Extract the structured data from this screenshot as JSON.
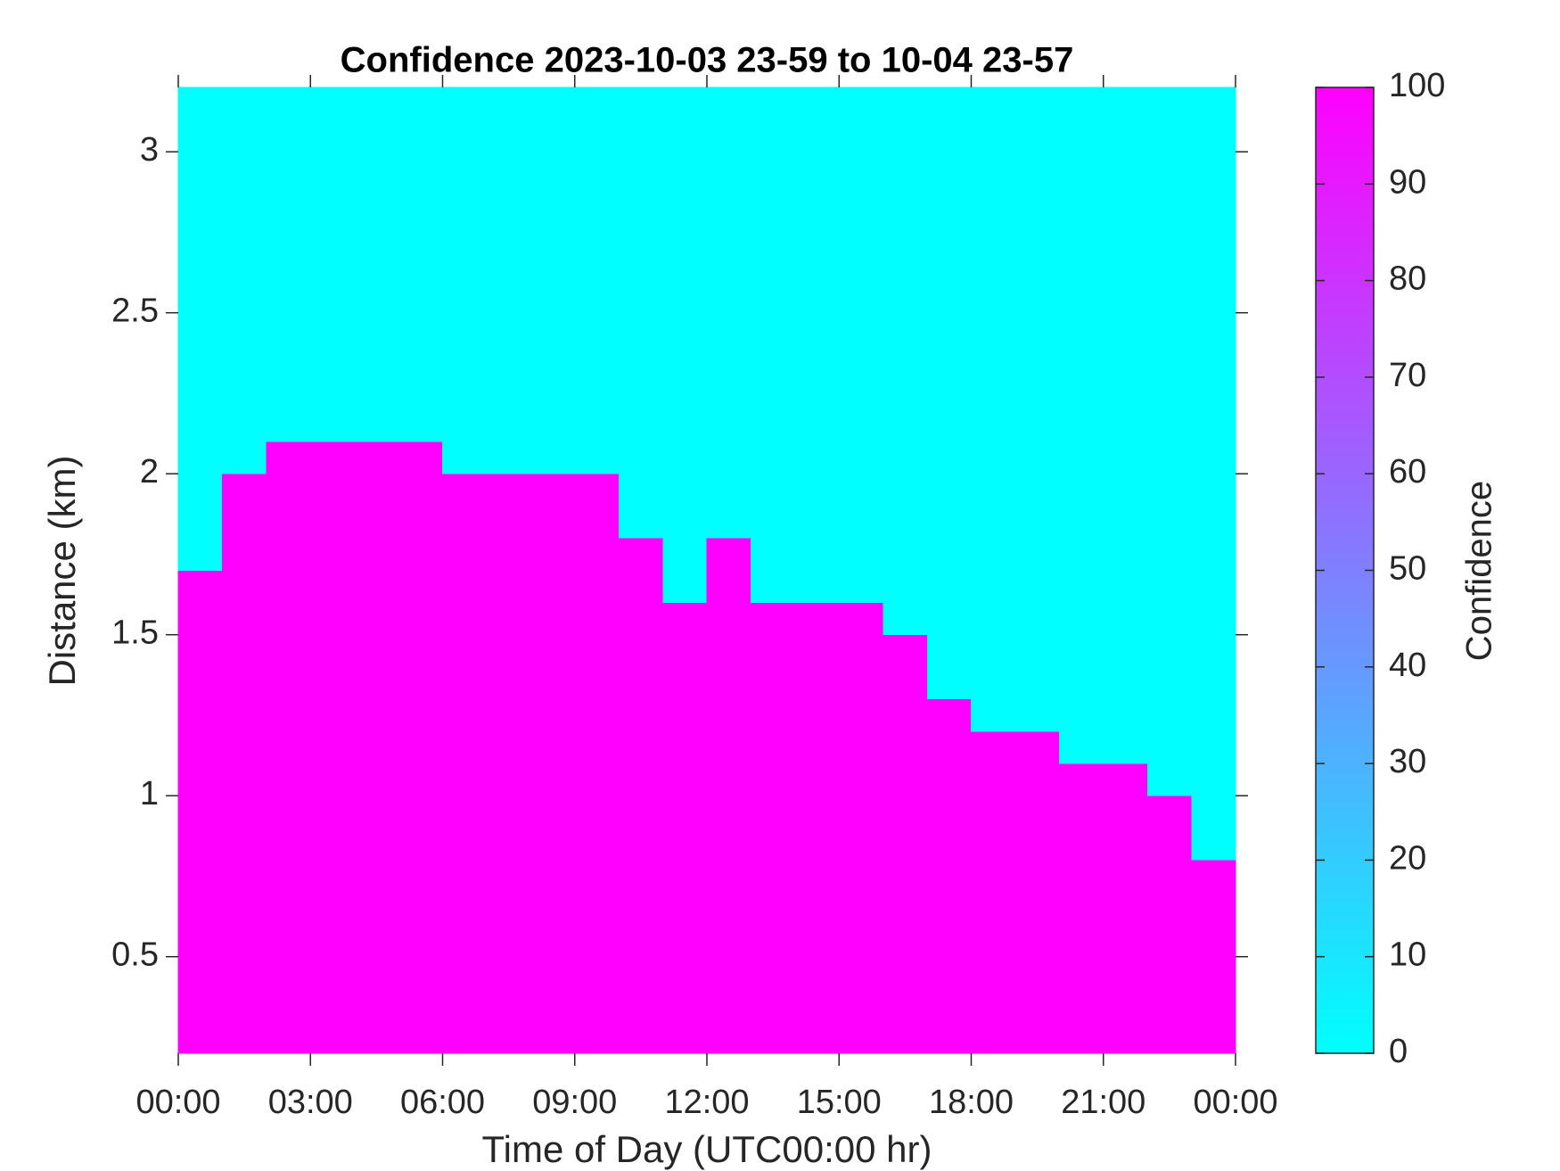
{
  "chart_data": {
    "type": "heatmap",
    "title": "Confidence 2023-10-03 23-59 to 10-04 23-57",
    "x_label": "Time of Day (UTC00:00 hr)",
    "y_label": "Distance (km)",
    "colorbar_label": "Confidence",
    "colormap": [
      "#00ffff",
      "#ff00ff"
    ],
    "clim": [
      0,
      100
    ],
    "colorbar_ticks": [
      0,
      10,
      20,
      30,
      40,
      50,
      60,
      70,
      80,
      90,
      100
    ],
    "xlim": [
      0,
      24
    ],
    "xticks": [
      {
        "value": 0,
        "label": "00:00"
      },
      {
        "value": 3,
        "label": "03:00"
      },
      {
        "value": 6,
        "label": "06:00"
      },
      {
        "value": 9,
        "label": "09:00"
      },
      {
        "value": 12,
        "label": "12:00"
      },
      {
        "value": 15,
        "label": "15:00"
      },
      {
        "value": 18,
        "label": "18:00"
      },
      {
        "value": 21,
        "label": "21:00"
      },
      {
        "value": 24,
        "label": "00:00"
      }
    ],
    "ylim": [
      0.2,
      3.2
    ],
    "yticks": [
      0.5,
      1,
      1.5,
      2,
      2.5,
      3
    ],
    "x": [
      0,
      1,
      2,
      3,
      4,
      5,
      6,
      7,
      8,
      9,
      10,
      11,
      12,
      13,
      14,
      15,
      16,
      17,
      18,
      19,
      20,
      21,
      22,
      23,
      24
    ],
    "y": [
      0.2,
      0.3,
      0.4,
      0.5,
      0.6,
      0.7,
      0.8,
      0.9,
      1.0,
      1.1,
      1.2,
      1.3,
      1.4,
      1.5,
      1.6,
      1.7,
      1.8,
      1.9,
      2.0,
      2.1,
      2.2,
      2.3,
      2.4,
      2.5,
      2.6,
      2.7,
      2.8,
      2.9,
      3.0,
      3.1,
      3.2
    ],
    "z": [
      [
        100,
        100,
        100,
        100,
        100,
        100,
        100,
        100,
        100,
        100,
        100,
        100,
        100,
        100,
        100,
        100,
        100,
        100,
        100,
        100,
        100,
        100,
        100,
        100
      ],
      [
        100,
        100,
        100,
        100,
        100,
        100,
        100,
        100,
        100,
        100,
        100,
        100,
        100,
        100,
        100,
        100,
        100,
        100,
        100,
        100,
        100,
        100,
        100,
        100
      ],
      [
        100,
        100,
        100,
        100,
        100,
        100,
        100,
        100,
        100,
        100,
        100,
        100,
        100,
        100,
        100,
        100,
        100,
        100,
        100,
        100,
        100,
        100,
        100,
        100
      ],
      [
        100,
        100,
        100,
        100,
        100,
        100,
        100,
        100,
        100,
        100,
        100,
        100,
        100,
        100,
        100,
        100,
        100,
        100,
        100,
        100,
        100,
        100,
        100,
        100
      ],
      [
        100,
        100,
        100,
        100,
        100,
        100,
        100,
        100,
        100,
        100,
        100,
        100,
        100,
        100,
        100,
        100,
        100,
        100,
        100,
        100,
        100,
        100,
        100,
        100
      ],
      [
        100,
        100,
        100,
        100,
        100,
        100,
        100,
        100,
        100,
        100,
        100,
        100,
        100,
        100,
        100,
        100,
        100,
        100,
        100,
        100,
        100,
        100,
        100,
        100
      ],
      [
        100,
        100,
        100,
        100,
        100,
        100,
        100,
        100,
        100,
        100,
        100,
        100,
        100,
        100,
        100,
        100,
        100,
        100,
        100,
        100,
        100,
        100,
        100,
        0
      ],
      [
        100,
        100,
        100,
        100,
        100,
        100,
        100,
        100,
        100,
        100,
        100,
        100,
        100,
        100,
        100,
        100,
        100,
        100,
        100,
        100,
        100,
        100,
        100,
        0
      ],
      [
        100,
        100,
        100,
        100,
        100,
        100,
        100,
        100,
        100,
        100,
        100,
        100,
        100,
        100,
        100,
        100,
        100,
        100,
        100,
        100,
        100,
        100,
        0,
        0
      ],
      [
        100,
        100,
        100,
        100,
        100,
        100,
        100,
        100,
        100,
        100,
        100,
        100,
        100,
        100,
        100,
        100,
        100,
        100,
        100,
        100,
        0,
        0,
        0,
        0
      ],
      [
        100,
        100,
        100,
        100,
        100,
        100,
        100,
        100,
        100,
        100,
        100,
        100,
        100,
        100,
        100,
        100,
        100,
        100,
        0,
        0,
        0,
        0,
        0,
        0
      ],
      [
        100,
        100,
        100,
        100,
        100,
        100,
        100,
        100,
        100,
        100,
        100,
        100,
        100,
        100,
        100,
        100,
        100,
        0,
        0,
        0,
        0,
        0,
        0,
        0
      ],
      [
        100,
        100,
        100,
        100,
        100,
        100,
        100,
        100,
        100,
        100,
        100,
        100,
        100,
        100,
        100,
        100,
        100,
        0,
        0,
        0,
        0,
        0,
        0,
        0
      ],
      [
        100,
        100,
        100,
        100,
        100,
        100,
        100,
        100,
        100,
        100,
        100,
        100,
        100,
        100,
        100,
        100,
        0,
        0,
        0,
        0,
        0,
        0,
        0,
        0
      ],
      [
        100,
        100,
        100,
        100,
        100,
        100,
        100,
        100,
        100,
        100,
        100,
        0,
        100,
        0,
        0,
        0,
        0,
        0,
        0,
        0,
        0,
        0,
        0,
        0
      ],
      [
        0,
        100,
        100,
        100,
        100,
        100,
        100,
        100,
        100,
        100,
        100,
        0,
        100,
        0,
        0,
        0,
        0,
        0,
        0,
        0,
        0,
        0,
        0,
        0
      ],
      [
        0,
        100,
        100,
        100,
        100,
        100,
        100,
        100,
        100,
        100,
        0,
        0,
        0,
        0,
        0,
        0,
        0,
        0,
        0,
        0,
        0,
        0,
        0,
        0
      ],
      [
        0,
        100,
        100,
        100,
        100,
        100,
        100,
        100,
        100,
        100,
        0,
        0,
        0,
        0,
        0,
        0,
        0,
        0,
        0,
        0,
        0,
        0,
        0,
        0
      ],
      [
        0,
        0,
        100,
        100,
        100,
        100,
        0,
        0,
        0,
        0,
        0,
        0,
        0,
        0,
        0,
        0,
        0,
        0,
        0,
        0,
        0,
        0,
        0,
        0
      ],
      [
        0,
        0,
        0,
        0,
        0,
        0,
        0,
        0,
        0,
        0,
        0,
        0,
        0,
        0,
        0,
        0,
        0,
        0,
        0,
        0,
        0,
        0,
        0,
        0
      ],
      [
        0,
        0,
        0,
        0,
        0,
        0,
        0,
        0,
        0,
        0,
        0,
        0,
        0,
        0,
        0,
        0,
        0,
        0,
        0,
        0,
        0,
        0,
        0,
        0
      ],
      [
        0,
        0,
        0,
        0,
        0,
        0,
        0,
        0,
        0,
        0,
        0,
        0,
        0,
        0,
        0,
        0,
        0,
        0,
        0,
        0,
        0,
        0,
        0,
        0
      ],
      [
        0,
        0,
        0,
        0,
        0,
        0,
        0,
        0,
        0,
        0,
        0,
        0,
        0,
        0,
        0,
        0,
        0,
        0,
        0,
        0,
        0,
        0,
        0,
        0
      ],
      [
        0,
        0,
        0,
        0,
        0,
        0,
        0,
        0,
        0,
        0,
        0,
        0,
        0,
        0,
        0,
        0,
        0,
        0,
        0,
        0,
        0,
        0,
        0,
        0
      ],
      [
        0,
        0,
        0,
        0,
        0,
        0,
        0,
        0,
        0,
        0,
        0,
        0,
        0,
        0,
        0,
        0,
        0,
        0,
        0,
        0,
        0,
        0,
        0,
        0
      ],
      [
        0,
        0,
        0,
        0,
        0,
        0,
        0,
        0,
        0,
        0,
        0,
        0,
        0,
        0,
        0,
        0,
        0,
        0,
        0,
        0,
        0,
        0,
        0,
        0
      ],
      [
        0,
        0,
        0,
        0,
        0,
        0,
        0,
        0,
        0,
        0,
        0,
        0,
        0,
        0,
        0,
        0,
        0,
        0,
        0,
        0,
        0,
        0,
        0,
        0
      ],
      [
        0,
        0,
        0,
        0,
        0,
        0,
        0,
        0,
        0,
        0,
        0,
        0,
        0,
        0,
        0,
        0,
        0,
        0,
        0,
        0,
        0,
        0,
        0,
        0
      ],
      [
        0,
        0,
        0,
        0,
        0,
        0,
        0,
        0,
        0,
        0,
        0,
        0,
        0,
        0,
        0,
        0,
        0,
        0,
        0,
        0,
        0,
        0,
        0,
        0
      ],
      [
        0,
        0,
        0,
        0,
        0,
        0,
        0,
        0,
        0,
        0,
        0,
        0,
        0,
        0,
        0,
        0,
        0,
        0,
        0,
        0,
        0,
        0,
        0,
        0
      ]
    ]
  }
}
